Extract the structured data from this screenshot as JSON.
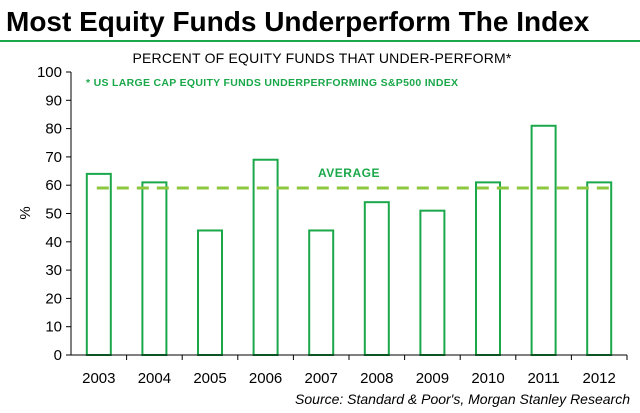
{
  "chart_data": {
    "type": "bar",
    "title": "Most Equity Funds Underperform The Index",
    "subtitle": "PERCENT OF EQUITY FUNDS THAT UNDER-PERFORM*",
    "note": "* US LARGE CAP EQUITY FUNDS UNDERPERFORMING S&P500 INDEX",
    "source": "Source: Standard & Poor's, Morgan Stanley Research",
    "ylabel": "%",
    "xlabel": "",
    "categories": [
      "2003",
      "2004",
      "2005",
      "2006",
      "2007",
      "2008",
      "2009",
      "2010",
      "2011",
      "2012"
    ],
    "values": [
      64,
      61,
      44,
      69,
      44,
      54,
      51,
      61,
      81,
      61
    ],
    "average": {
      "label": "AVERAGE",
      "value": 59
    },
    "ylim": [
      0,
      100
    ],
    "yticks": [
      0,
      10,
      20,
      30,
      40,
      50,
      60,
      70,
      80,
      90,
      100
    ],
    "grid": false,
    "colors": {
      "bar_fill": "#ffffff",
      "bar_stroke": "#1aa84a",
      "average_line": "#8dc63f",
      "accent_text": "#1aa84a",
      "title_rule": "#1aa84a"
    }
  }
}
